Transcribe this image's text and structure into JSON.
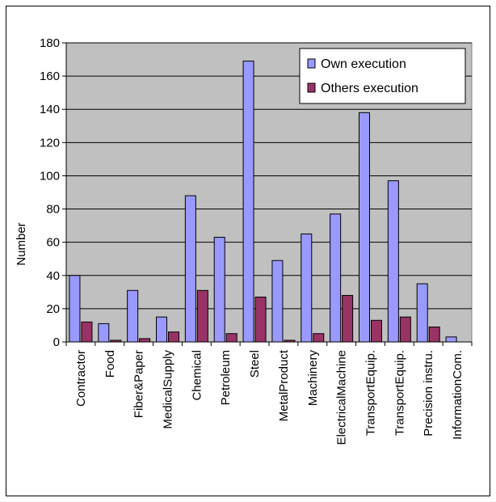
{
  "chart_data": {
    "type": "bar",
    "title": "",
    "xlabel": "",
    "ylabel": "Number",
    "ylim": [
      0,
      180
    ],
    "yticks": [
      0,
      20,
      40,
      60,
      80,
      100,
      120,
      140,
      160,
      180
    ],
    "categories": [
      "Contractor",
      "Food",
      "Fiber&Paper",
      "MedicalSupply",
      "Chemical",
      "Petroleum",
      "Steel",
      "MetalProduct",
      "Machinery",
      "ElectricalMachine",
      "TransportEquip.",
      "TransportEquip.",
      "Precision instru.",
      "InformationCom."
    ],
    "series": [
      {
        "name": "Own execution",
        "color": "#9999ff",
        "values": [
          40,
          11,
          31,
          15,
          88,
          63,
          169,
          49,
          65,
          77,
          138,
          97,
          35,
          3
        ]
      },
      {
        "name": "Others execution",
        "color": "#993366",
        "values": [
          12,
          1,
          2,
          6,
          31,
          5,
          27,
          1,
          5,
          28,
          13,
          15,
          9,
          0
        ]
      }
    ],
    "plot_background": "#c0c0c0",
    "grid": true,
    "legend_position": "top-right"
  }
}
